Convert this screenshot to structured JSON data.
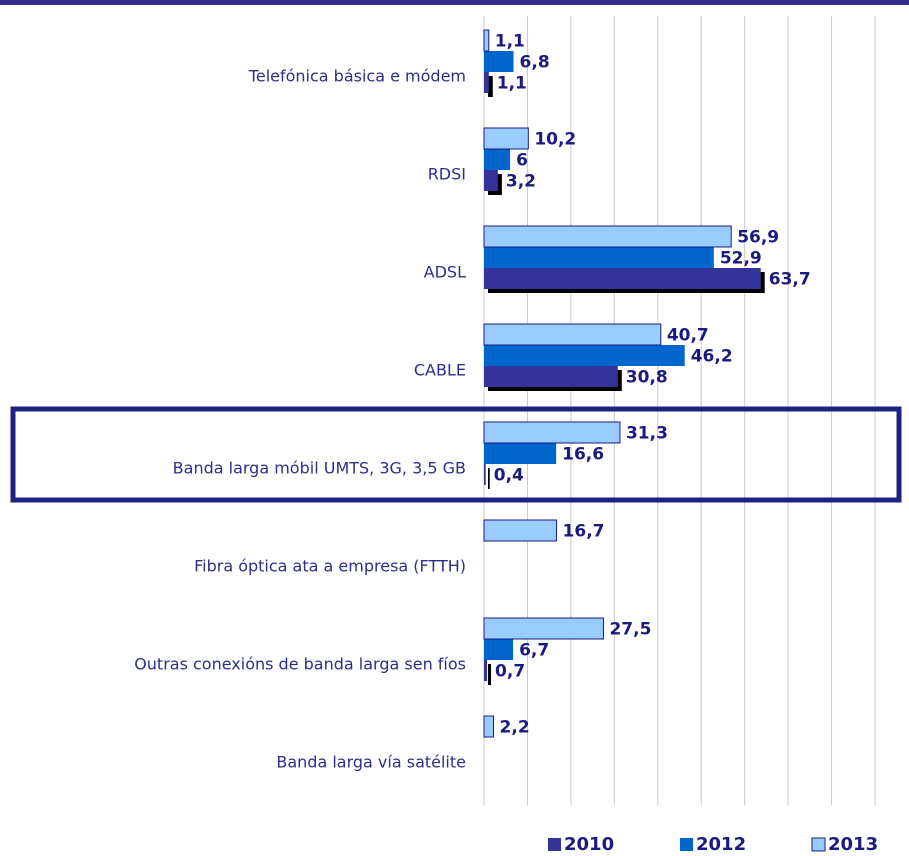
{
  "chart_data": {
    "type": "hbar",
    "categories": [
      "Telefónica básica e módem",
      "RDSI",
      "ADSL",
      "CABLE",
      "Banda larga móbil UMTS, 3G, 3,5 GB",
      "Fibra óptica ata a empresa (FTTH)",
      "Outras conexións de banda larga sen fíos",
      "Banda  larga vía satélite"
    ],
    "series": [
      {
        "name": "2010",
        "color": "#333399",
        "values": [
          1.1,
          3.2,
          63.7,
          30.8,
          0.4,
          null,
          0.7,
          null
        ],
        "value_labels": [
          "1,1",
          "3,2",
          "63,7",
          "30,8",
          "0,4",
          null,
          "0,7",
          null
        ]
      },
      {
        "name": "2012",
        "color": "#0066cc",
        "values": [
          6.8,
          6,
          52.9,
          46.2,
          16.6,
          null,
          6.7,
          null
        ],
        "value_labels": [
          "6,8",
          "6",
          "52,9",
          "46,2",
          "16,6",
          null,
          "6,7",
          null
        ]
      },
      {
        "name": "2013",
        "color": "#99ccff",
        "values": [
          1.1,
          10.2,
          56.9,
          40.7,
          31.3,
          16.7,
          27.5,
          2.2
        ],
        "value_labels": [
          "1,1",
          "10,2",
          "56,9",
          "40,7",
          "31,3",
          "16,7",
          "27,5",
          "2,2"
        ]
      }
    ],
    "xlim": [
      0,
      90
    ],
    "xticks": [
      0,
      10,
      20,
      30,
      40,
      50,
      60,
      70,
      80,
      90
    ],
    "grid": true,
    "legend": "bottom"
  }
}
